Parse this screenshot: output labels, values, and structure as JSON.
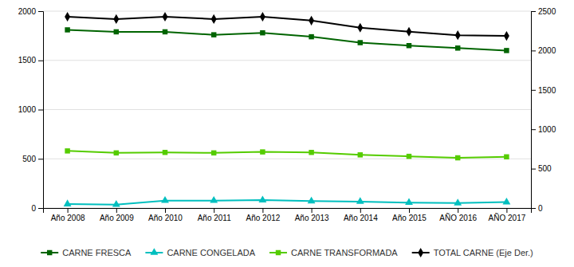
{
  "chart_data": {
    "type": "line",
    "categories": [
      "Año 2008",
      "Año 2009",
      "Año 2010",
      "Año 2011",
      "Año 2012",
      "Año 2013",
      "Año 2014",
      "Año 2015",
      "AÑO 2016",
      "AÑO 2017"
    ],
    "series": [
      {
        "name": "CARNE FRESCA",
        "color": "#006400",
        "marker": "square",
        "values": [
          1810,
          1790,
          1790,
          1760,
          1780,
          1740,
          1680,
          1650,
          1625,
          1600
        ]
      },
      {
        "name": "CARNE CONGELADA",
        "color": "#00BFBF",
        "marker": "triangle",
        "values": [
          40,
          35,
          75,
          75,
          80,
          70,
          65,
          55,
          50,
          60
        ]
      },
      {
        "name": "CARNE TRANSFORMADA",
        "color": "#55CC00",
        "marker": "square",
        "values": [
          580,
          560,
          565,
          560,
          570,
          565,
          540,
          525,
          510,
          520
        ]
      },
      {
        "name": "TOTAL CARNE (Eje Der.)",
        "color": "#000000",
        "marker": "diamond",
        "axis": "y2",
        "values": [
          2430,
          2400,
          2430,
          2400,
          2430,
          2380,
          2290,
          2240,
          2195,
          2185
        ]
      }
    ],
    "ylim": [
      0,
      2000
    ],
    "yticks": [
      0,
      500,
      1000,
      1500,
      2000
    ],
    "y2lim": [
      0,
      2500
    ],
    "y2ticks": [
      0,
      500,
      1000,
      1500,
      2000,
      2500
    ],
    "grid": true,
    "legend": "bottom"
  }
}
